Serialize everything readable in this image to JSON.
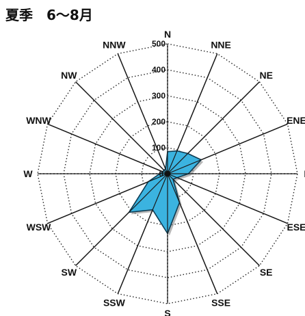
{
  "title": "夏季　6〜8月",
  "chart_data": {
    "type": "radar",
    "title": "夏季　6〜8月",
    "directions": [
      "N",
      "NNE",
      "NE",
      "ENE",
      "E",
      "ESE",
      "SE",
      "SSE",
      "S",
      "SSW",
      "SW",
      "WSW",
      "W",
      "WNW",
      "NW",
      "NNW"
    ],
    "rings": [
      0,
      100,
      200,
      300,
      400,
      500
    ],
    "rmax": 500,
    "series": [
      {
        "values": [
          85,
          95,
          110,
          140,
          80,
          40,
          30,
          120,
          230,
          150,
          210,
          80,
          30,
          20,
          20,
          20
        ],
        "color": "#3bb3e0"
      }
    ]
  }
}
